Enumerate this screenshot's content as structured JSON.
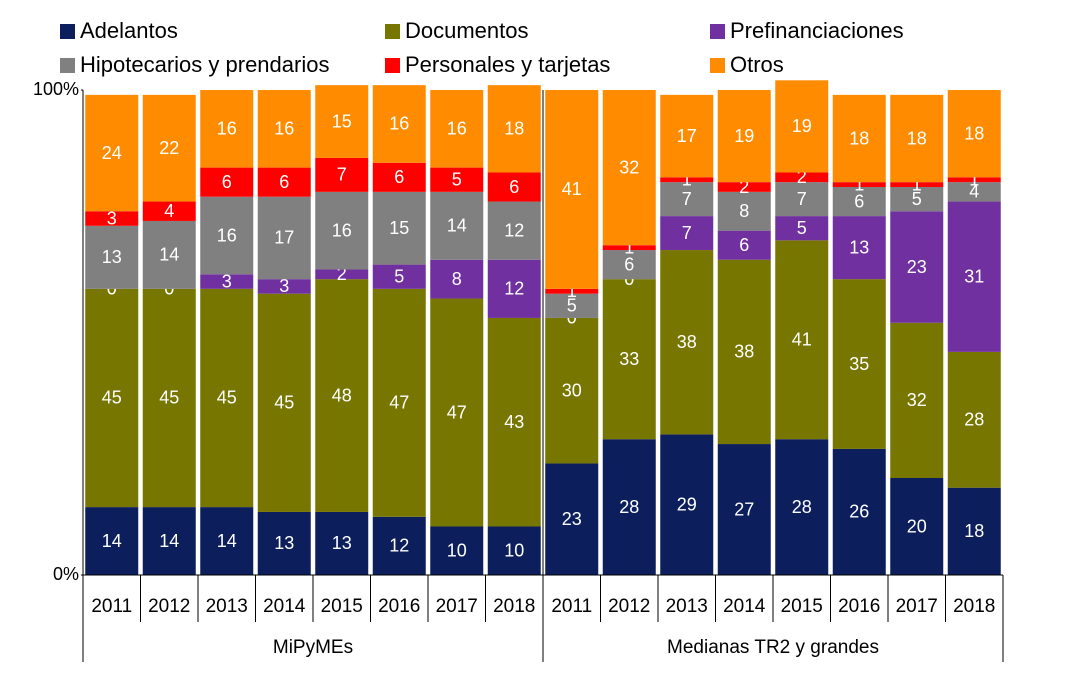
{
  "chart_data": {
    "type": "stacked_bar",
    "groups": [
      {
        "name": "MiPyMEs",
        "categories": [
          "2011",
          "2012",
          "2013",
          "2014",
          "2015",
          "2016",
          "2017",
          "2018"
        ]
      },
      {
        "name": "Medianas TR2 y grandes",
        "categories": [
          "2011",
          "2012",
          "2013",
          "2014",
          "2015",
          "2016",
          "2017",
          "2018"
        ]
      }
    ],
    "series": [
      {
        "name": "Adelantos",
        "color": "#0c1f5c",
        "values": [
          14,
          14,
          14,
          13,
          13,
          12,
          10,
          10,
          23,
          28,
          29,
          27,
          28,
          26,
          20,
          18
        ]
      },
      {
        "name": "Documentos",
        "color": "#767600",
        "values": [
          45,
          45,
          45,
          45,
          48,
          47,
          47,
          43,
          30,
          33,
          38,
          38,
          41,
          35,
          32,
          28
        ]
      },
      {
        "name": "Prefinanciaciones",
        "color": "#7030a0",
        "values": [
          0,
          0,
          3,
          3,
          2,
          5,
          8,
          12,
          0,
          0,
          7,
          6,
          5,
          13,
          23,
          31
        ]
      },
      {
        "name": "Hipotecarios y prendarios",
        "color": "#808080",
        "values": [
          13,
          14,
          16,
          17,
          16,
          15,
          14,
          12,
          5,
          6,
          7,
          8,
          7,
          6,
          5,
          4
        ]
      },
      {
        "name": "Personales y tarjetas",
        "color": "#ff0000",
        "values": [
          3,
          4,
          6,
          6,
          7,
          6,
          5,
          6,
          1,
          1,
          1,
          2,
          2,
          1,
          1,
          1
        ]
      },
      {
        "name": "Otros",
        "color": "#ff8c00",
        "values": [
          24,
          22,
          16,
          16,
          15,
          16,
          16,
          18,
          41,
          32,
          17,
          19,
          19,
          18,
          18,
          18
        ]
      }
    ],
    "ylim": [
      0,
      100
    ],
    "yticks": [
      {
        "value": 0,
        "label": "0%"
      },
      {
        "value": 100,
        "label": "100%"
      }
    ]
  }
}
